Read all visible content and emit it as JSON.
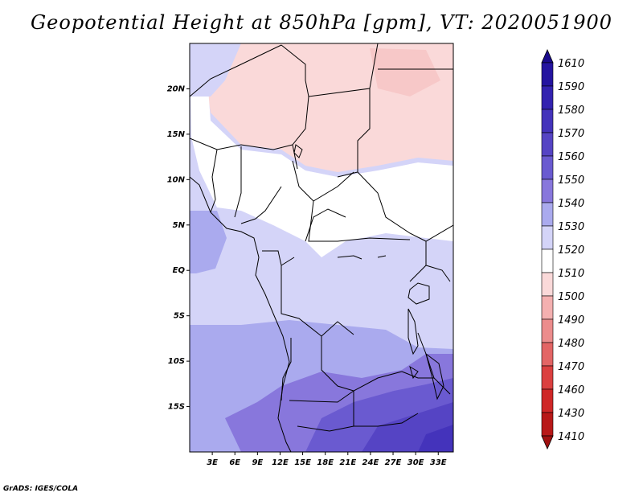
{
  "title": "Geopotential Height at 850hPa [gpm], VT: 2020051900",
  "footer": "GrADS: IGES/COLA",
  "map": {
    "lat_ticks": [
      "20N",
      "15N",
      "10N",
      "5N",
      "EQ",
      "5S",
      "10S",
      "15S"
    ],
    "lon_ticks": [
      "3E",
      "6E",
      "9E",
      "12E",
      "15E",
      "18E",
      "21E",
      "24E",
      "27E",
      "30E",
      "33E"
    ],
    "lat_values": [
      20,
      15,
      10,
      5,
      0,
      -5,
      -10,
      -15
    ],
    "lon_values": [
      3,
      6,
      9,
      12,
      15,
      18,
      21,
      24,
      27,
      30,
      33
    ],
    "lon_range": [
      0,
      35
    ],
    "lat_range": [
      -20,
      25
    ]
  },
  "colorbar": {
    "levels": [
      "1610",
      "1590",
      "1580",
      "1570",
      "1560",
      "1550",
      "1540",
      "1530",
      "1520",
      "1510",
      "1500",
      "1490",
      "1480",
      "1470",
      "1460",
      "1430",
      "1410"
    ],
    "colors": [
      "#1a0a8c",
      "#2414a0",
      "#3322b0",
      "#4433bb",
      "#5544c4",
      "#6a5ad0",
      "#8877dc",
      "#aaaaee",
      "#d4d4f8",
      "#ffffff",
      "#fad9d9",
      "#f4b0b0",
      "#ec8c8c",
      "#e36565",
      "#db4040",
      "#cf2727",
      "#b81818",
      "#a01010"
    ]
  }
}
